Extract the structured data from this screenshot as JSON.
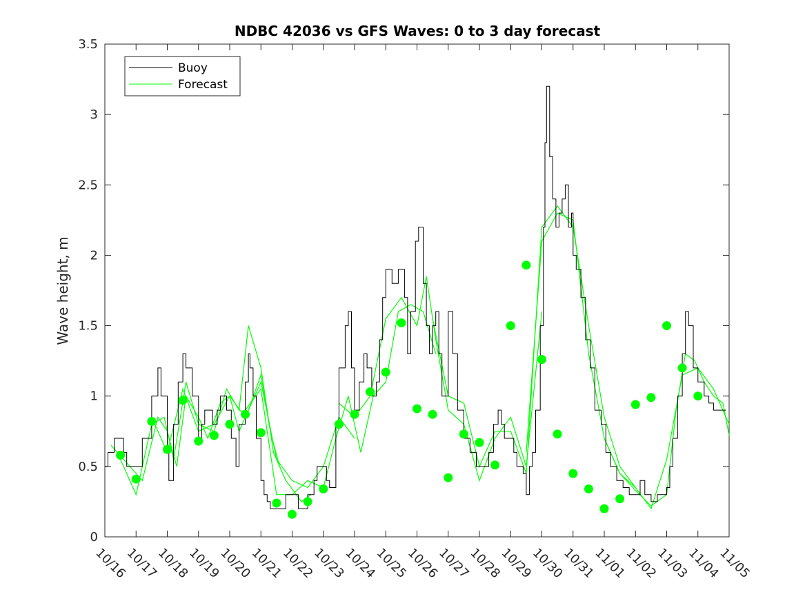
{
  "chart_data": {
    "type": "line",
    "title": "NDBC 42036 vs GFS Waves: 0 to 3 day forecast",
    "xlabel": "",
    "ylabel": "Wave height, m",
    "xlim": [
      0,
      20
    ],
    "ylim": [
      0,
      3.5
    ],
    "x_ticks": [
      0,
      1,
      2,
      3,
      4,
      5,
      6,
      7,
      8,
      9,
      10,
      11,
      12,
      13,
      14,
      15,
      16,
      17,
      18,
      19,
      20
    ],
    "x_tick_labels": [
      "10/16",
      "10/17",
      "10/18",
      "10/19",
      "10/20",
      "10/21",
      "10/22",
      "10/23",
      "10/24",
      "10/25",
      "10/26",
      "10/27",
      "10/28",
      "10/29",
      "10/30",
      "10/31",
      "11/01",
      "11/02",
      "11/03",
      "11/04",
      "11/05"
    ],
    "y_ticks": [
      0,
      0.5,
      1,
      1.5,
      2,
      2.5,
      3,
      3.5
    ],
    "y_tick_labels": [
      "0",
      "0.5",
      "1",
      "1.5",
      "2",
      "2.5",
      "3",
      "3.5"
    ],
    "legend": {
      "position": "top-left",
      "entries": [
        "Buoy",
        "Forecast"
      ]
    },
    "colors": {
      "buoy": "#000000",
      "forecast": "#00ff00",
      "axes": "#262626"
    },
    "series": [
      {
        "name": "Buoy",
        "style": "step",
        "x": [
          0,
          0.1,
          0.3,
          0.6,
          0.7,
          0.95,
          1.05,
          1.2,
          1.5,
          1.7,
          1.8,
          2,
          2.05,
          2.2,
          2.35,
          2.5,
          2.6,
          2.8,
          3,
          3.1,
          3.2,
          3.45,
          3.6,
          3.7,
          3.9,
          4.05,
          4.2,
          4.3,
          4.5,
          4.6,
          4.65,
          4.75,
          4.85,
          5,
          5.1,
          5.2,
          5.3,
          5.5,
          5.8,
          6,
          6.2,
          6.5,
          6.7,
          6.8,
          6.95,
          7.1,
          7.2,
          7.4,
          7.5,
          7.7,
          7.8,
          7.9,
          8,
          8.15,
          8.3,
          8.4,
          8.55,
          8.7,
          8.8,
          8.9,
          9,
          9.2,
          9.4,
          9.6,
          9.7,
          9.8,
          9.95,
          10.05,
          10.2,
          10.3,
          10.4,
          10.5,
          10.6,
          10.7,
          10.8,
          11,
          11.15,
          11.3,
          11.5,
          11.7,
          11.9,
          12.1,
          12.3,
          12.45,
          12.6,
          12.7,
          12.8,
          13,
          13.1,
          13.2,
          13.4,
          13.5,
          13.6,
          13.7,
          13.8,
          13.95,
          14.05,
          14.1,
          14.15,
          14.25,
          14.35,
          14.45,
          14.55,
          14.65,
          14.75,
          14.85,
          14.95,
          15,
          15.1,
          15.25,
          15.4,
          15.55,
          15.7,
          15.9,
          16.05,
          16.2,
          16.4,
          16.6,
          16.8,
          17,
          17.15,
          17.3,
          17.5,
          17.7,
          17.85,
          18,
          18.1,
          18.2,
          18.35,
          18.5,
          18.6,
          18.7,
          18.85,
          19,
          19.2,
          19.35,
          19.5,
          19.7,
          19.8
        ],
        "y": [
          0.5,
          0.6,
          0.7,
          0.6,
          0.5,
          0.5,
          0.5,
          0.7,
          1.0,
          1.2,
          1.0,
          0.6,
          0.4,
          0.8,
          1.1,
          1.3,
          1.2,
          1.0,
          0.7,
          0.8,
          0.9,
          0.8,
          0.9,
          1.0,
          0.9,
          0.7,
          0.5,
          0.8,
          1.1,
          1.3,
          1.2,
          1.0,
          0.7,
          0.4,
          0.3,
          0.25,
          0.2,
          0.2,
          0.3,
          0.3,
          0.2,
          0.3,
          0.4,
          0.5,
          0.5,
          0.4,
          0.35,
          0.8,
          1.2,
          1.5,
          1.6,
          1.2,
          0.9,
          1.1,
          1.3,
          1.2,
          1.0,
          1.1,
          1.4,
          1.7,
          1.9,
          1.8,
          1.9,
          1.7,
          1.3,
          1.6,
          2.1,
          2.2,
          1.8,
          1.5,
          1.3,
          1.5,
          1.6,
          1.3,
          1.0,
          1.6,
          1.3,
          0.9,
          0.7,
          0.6,
          0.5,
          0.5,
          0.6,
          0.8,
          0.9,
          0.8,
          0.7,
          0.7,
          0.6,
          0.5,
          0.45,
          0.3,
          0.5,
          0.6,
          0.9,
          1.5,
          2.2,
          2.8,
          3.2,
          2.7,
          2.4,
          2.2,
          2.3,
          2.4,
          2.5,
          2.2,
          2.3,
          2.0,
          1.9,
          1.7,
          1.4,
          1.2,
          0.9,
          0.8,
          0.6,
          0.5,
          0.4,
          0.35,
          0.3,
          0.3,
          0.4,
          0.3,
          0.25,
          0.3,
          0.3,
          0.35,
          0.5,
          0.7,
          1.0,
          1.3,
          1.6,
          1.5,
          1.2,
          1.1,
          1.0,
          0.95,
          0.9,
          0.9,
          0.9
        ]
      },
      {
        "name": "Forecast",
        "runs": [
          {
            "x": [
              0.2,
              0.6,
              1.2,
              1.7,
              2.0,
              2.3,
              2.6,
              3.0,
              3.3,
              3.7,
              4.0,
              4.3,
              4.6,
              5.0,
              5.3,
              5.6
            ],
            "y": [
              0.65,
              0.55,
              0.4,
              0.85,
              0.75,
              0.5,
              1.0,
              0.85,
              0.7,
              0.95,
              1.0,
              0.75,
              0.9,
              1.15,
              0.75,
              0.5
            ]
          },
          {
            "x": [
              0.5,
              1.0,
              1.5,
              1.9,
              2.2,
              2.6,
              3.0,
              3.5,
              3.9,
              4.3,
              4.6,
              5.0,
              5.4,
              5.8,
              6.3,
              6.6
            ],
            "y": [
              0.55,
              0.3,
              0.8,
              0.85,
              0.55,
              1.1,
              0.8,
              0.75,
              1.05,
              0.9,
              1.5,
              1.2,
              0.6,
              0.4,
              0.25,
              0.3
            ]
          },
          {
            "x": [
              1.5,
              2.0,
              2.5,
              3.0,
              3.5,
              4.0,
              4.5,
              5.0,
              5.5,
              6.0,
              6.5,
              7.0,
              7.5,
              8.0
            ],
            "y": [
              0.85,
              0.6,
              1.05,
              0.75,
              0.8,
              1.0,
              0.85,
              1.1,
              0.55,
              0.4,
              0.35,
              0.5,
              0.85,
              0.7
            ]
          },
          {
            "x": [
              4.5,
              5.0,
              5.5,
              6.0,
              6.5,
              7.0,
              7.4,
              7.8,
              8.2,
              8.6,
              9.0,
              9.4,
              9.8,
              10.2,
              10.6
            ],
            "y": [
              0.9,
              1.05,
              0.3,
              0.3,
              0.4,
              0.35,
              0.7,
              1.0,
              0.6,
              1.0,
              1.1,
              1.6,
              1.65,
              1.6,
              1.3
            ]
          },
          {
            "x": [
              7.5,
              8.0,
              8.5,
              9.0,
              9.5,
              10.0,
              10.3,
              10.6,
              11.0,
              11.5,
              12.0,
              12.5,
              13.0,
              13.5,
              14.0
            ],
            "y": [
              0.95,
              0.85,
              1.0,
              1.55,
              1.7,
              1.5,
              1.85,
              1.4,
              0.9,
              0.8,
              0.4,
              0.7,
              0.85,
              0.5,
              1.6
            ]
          },
          {
            "x": [
              10.5,
              11.0,
              11.5,
              12.0,
              12.5,
              13.0,
              13.5,
              14.0,
              14.5,
              15.0,
              15.5,
              16.0,
              16.5,
              17.0
            ],
            "y": [
              1.55,
              1.0,
              0.95,
              0.5,
              0.75,
              0.75,
              0.45,
              2.2,
              2.35,
              2.2,
              1.5,
              0.85,
              0.5,
              0.35
            ]
          },
          {
            "x": [
              13.5,
              14.0,
              14.5,
              15.0,
              15.5,
              16.0,
              16.5,
              17.0,
              17.5,
              18.0,
              18.5,
              19.0,
              19.5,
              20.0
            ],
            "y": [
              0.6,
              2.1,
              2.3,
              2.25,
              1.3,
              0.7,
              0.45,
              0.35,
              0.2,
              0.55,
              1.15,
              1.2,
              1.05,
              0.8
            ]
          },
          {
            "x": [
              16.0,
              16.5,
              17.0,
              17.5,
              18.0,
              18.3,
              18.6,
              18.9,
              19.2,
              19.5,
              19.8,
              20.0
            ],
            "y": [
              0.7,
              0.45,
              0.33,
              0.22,
              0.3,
              0.9,
              1.3,
              1.25,
              1.1,
              1.0,
              0.95,
              0.72
            ]
          }
        ],
        "markers": {
          "x": [
            0.5,
            1,
            1.5,
            2,
            2.5,
            3,
            3.5,
            4,
            4.5,
            5,
            5.5,
            6,
            6.5,
            7,
            7.5,
            8,
            8.5,
            9,
            9.5,
            10,
            10.5,
            11,
            11.5,
            12,
            12.5,
            13,
            13.5,
            14,
            14.5,
            15,
            15.5,
            16,
            16.5,
            17,
            17.5,
            18,
            18.5,
            19
          ],
          "y": [
            0.58,
            0.41,
            0.82,
            0.62,
            0.97,
            0.68,
            0.72,
            0.8,
            0.87,
            0.74,
            0.24,
            0.16,
            0.25,
            0.34,
            0.8,
            0.87,
            1.03,
            1.17,
            1.52,
            0.91,
            0.87,
            0.42,
            0.73,
            0.67,
            0.51,
            1.5,
            1.93,
            1.26,
            0.73,
            0.45,
            0.34,
            0.2,
            0.27,
            0.94,
            0.99,
            1.5,
            1.2,
            1.0
          ]
        }
      }
    ]
  }
}
